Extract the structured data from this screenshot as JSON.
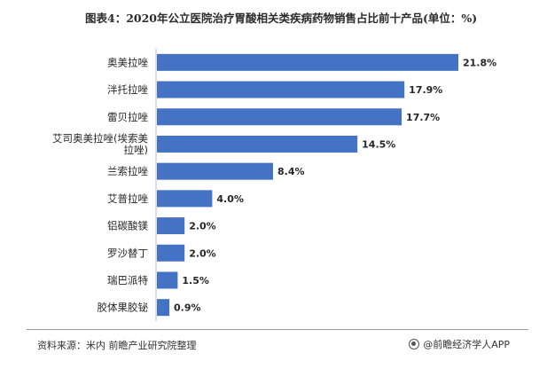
{
  "title": "图表4：2020年公立医院治疗胃酸相关类疾病药物销售占比前十产品(单位：%)",
  "source": "资料来源：米内 前瞻产业研究院整理",
  "credit": "@前瞻经济学人APP",
  "colors": {
    "bar": "#4472c4",
    "axis": "#bfbfbf"
  },
  "chart_data": {
    "type": "bar",
    "orientation": "horizontal",
    "categories": [
      "奥美拉唑",
      "泮托拉唑",
      "雷贝拉唑",
      "艾司奥美拉唑(埃索美拉唑)",
      "兰索拉唑",
      "艾普拉唑",
      "铝碳酸镁",
      "罗沙替丁",
      "瑞巴派特",
      "胶体果胶铋"
    ],
    "category_lines": [
      [
        "奥美拉唑"
      ],
      [
        "泮托拉唑"
      ],
      [
        "雷贝拉唑"
      ],
      [
        "艾司奥美拉唑(埃索美",
        "拉唑)"
      ],
      [
        "兰索拉唑"
      ],
      [
        "艾普拉唑"
      ],
      [
        "铝碳酸镁"
      ],
      [
        "罗沙替丁"
      ],
      [
        "瑞巴派特"
      ],
      [
        "胶体果胶铋"
      ]
    ],
    "values": [
      21.8,
      17.9,
      17.7,
      14.5,
      8.4,
      4.0,
      2.0,
      2.0,
      1.5,
      0.9
    ],
    "value_labels": [
      "21.8%",
      "17.9%",
      "17.7%",
      "14.5%",
      "8.4%",
      "4.0%",
      "2.0%",
      "2.0%",
      "1.5%",
      "0.9%"
    ],
    "unit": "%",
    "xlim": [
      0,
      21.8
    ],
    "grid": false,
    "legend": "none"
  }
}
